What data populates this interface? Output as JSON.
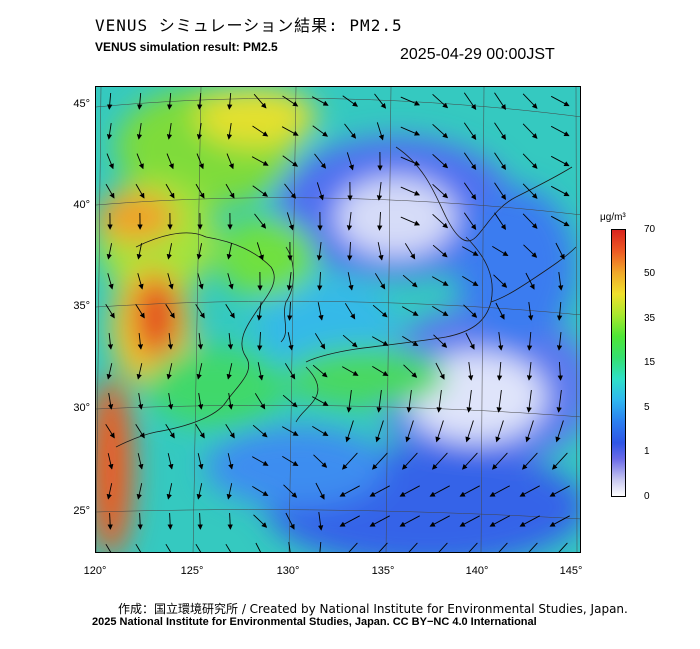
{
  "title_jp": "VENUS シミュレーション結果: PM2.5",
  "title_en": "VENUS simulation result: PM2.5",
  "timestamp": "2025-04-29 00:00JST",
  "map": {
    "lat_labels": [
      "45°",
      "40°",
      "35°",
      "30°",
      "25°"
    ],
    "lon_labels": [
      "120°",
      "125°",
      "130°",
      "135°",
      "140°",
      "145°"
    ]
  },
  "colorbar": {
    "unit": "μg/m³",
    "ticks": [
      "70",
      "50",
      "35",
      "15",
      "5",
      "1",
      "0"
    ]
  },
  "credits": {
    "line1": "作成：国立環境研究所 / Created by National Institute for Environmental Studies, Japan.",
    "line2": "2025 National Institute for Environmental Studies, Japan. CC BY−NC 4.0 International"
  }
}
